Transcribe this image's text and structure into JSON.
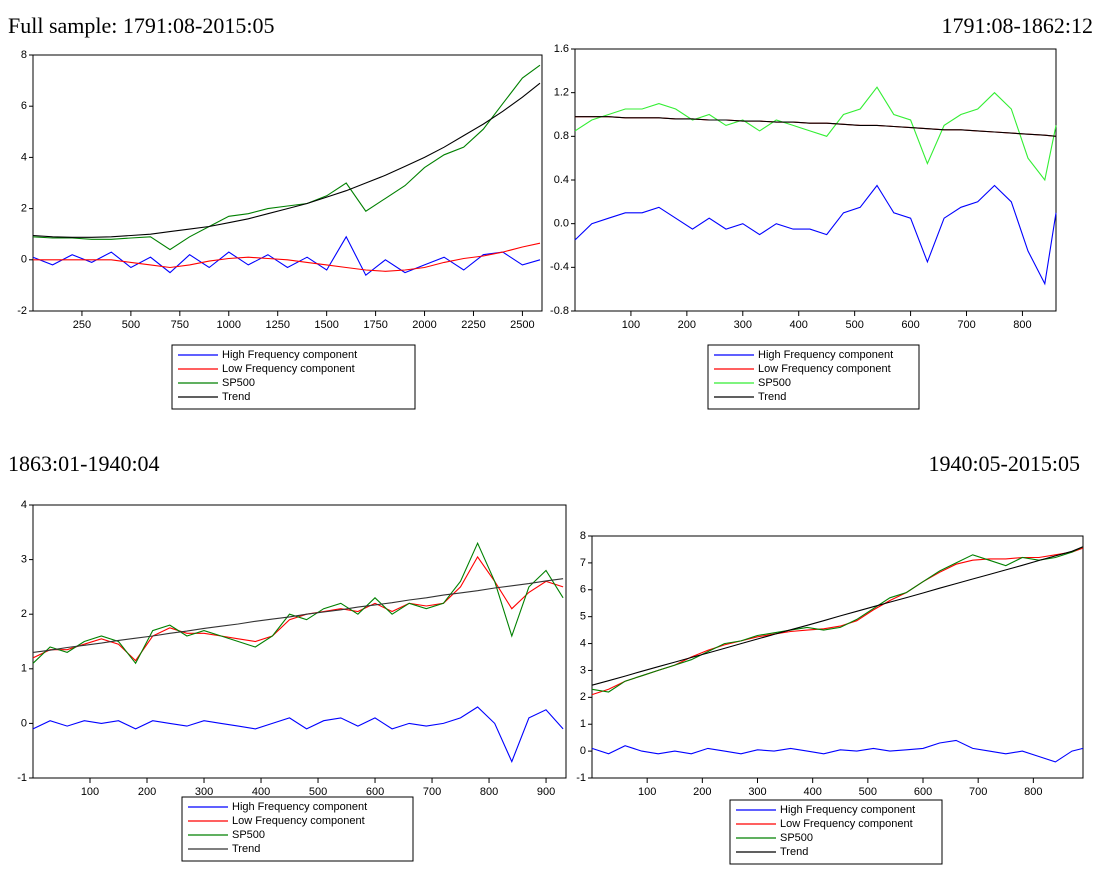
{
  "chart_data": [
    {
      "type": "line",
      "title": "Full sample: 1791:08-2015:05",
      "x": [
        0,
        100,
        200,
        300,
        400,
        500,
        600,
        700,
        800,
        900,
        1000,
        1100,
        1200,
        1300,
        1400,
        1500,
        1600,
        1700,
        1800,
        1900,
        2000,
        2100,
        2200,
        2300,
        2400,
        2500,
        2590
      ],
      "series": [
        {
          "name": "High Frequency component",
          "color": "#0000ff",
          "values": [
            0.1,
            -0.2,
            0.2,
            -0.1,
            0.3,
            -0.3,
            0.1,
            -0.5,
            0.2,
            -0.3,
            0.3,
            -0.2,
            0.2,
            -0.3,
            0.1,
            -0.4,
            0.9,
            -0.6,
            0.0,
            -0.5,
            -0.2,
            0.1,
            -0.4,
            0.2,
            0.3,
            -0.2,
            0.0
          ]
        },
        {
          "name": "Low Frequency component",
          "color": "#ff0000",
          "values": [
            0,
            0,
            0,
            0,
            0,
            -0.1,
            -0.2,
            -0.3,
            -0.2,
            -0.05,
            0.05,
            0.1,
            0.05,
            0,
            -0.1,
            -0.2,
            -0.3,
            -0.4,
            -0.45,
            -0.4,
            -0.3,
            -0.1,
            0.05,
            0.15,
            0.3,
            0.5,
            0.65
          ]
        },
        {
          "name": "SP500",
          "color": "#008000",
          "values": [
            0.9,
            0.85,
            0.85,
            0.8,
            0.8,
            0.85,
            0.9,
            0.4,
            0.9,
            1.3,
            1.7,
            1.8,
            2.0,
            2.1,
            2.2,
            2.5,
            3.0,
            1.9,
            2.4,
            2.9,
            3.6,
            4.1,
            4.4,
            5.1,
            6.1,
            7.1,
            7.6
          ]
        },
        {
          "name": "Trend",
          "color": "#000000",
          "values": [
            0.95,
            0.9,
            0.88,
            0.88,
            0.9,
            0.95,
            1.0,
            1.1,
            1.2,
            1.3,
            1.45,
            1.6,
            1.8,
            2.0,
            2.2,
            2.45,
            2.7,
            3.0,
            3.3,
            3.65,
            4.0,
            4.4,
            4.85,
            5.3,
            5.8,
            6.35,
            6.9
          ]
        }
      ],
      "xlim": [
        0,
        2600
      ],
      "ylim": [
        -2,
        8
      ],
      "xticks": [
        250,
        500,
        750,
        1000,
        1250,
        1500,
        1750,
        2000,
        2250,
        2500
      ],
      "yticks": [
        -2,
        0,
        2,
        4,
        6,
        8
      ]
    },
    {
      "type": "line",
      "title": "1791:08-1862:12",
      "x": [
        0,
        30,
        60,
        90,
        120,
        150,
        180,
        210,
        240,
        270,
        300,
        330,
        360,
        390,
        420,
        450,
        480,
        510,
        540,
        570,
        600,
        630,
        660,
        690,
        720,
        750,
        780,
        810,
        840,
        860
      ],
      "series": [
        {
          "name": "High Frequency component",
          "color": "#0000ff",
          "values": [
            -0.15,
            0.0,
            0.05,
            0.1,
            0.1,
            0.15,
            0.05,
            -0.05,
            0.05,
            -0.05,
            0.0,
            -0.1,
            0.0,
            -0.05,
            -0.05,
            -0.1,
            0.1,
            0.15,
            0.35,
            0.1,
            0.05,
            -0.35,
            0.05,
            0.15,
            0.2,
            0.35,
            0.2,
            -0.25,
            -0.55,
            0.1
          ]
        },
        {
          "name": "Low Frequency component",
          "color": "#ff0000",
          "values": [
            0.98,
            0.98,
            0.98,
            0.97,
            0.97,
            0.97,
            0.96,
            0.96,
            0.95,
            0.95,
            0.94,
            0.94,
            0.93,
            0.93,
            0.92,
            0.92,
            0.91,
            0.9,
            0.9,
            0.89,
            0.88,
            0.87,
            0.86,
            0.86,
            0.85,
            0.84,
            0.83,
            0.82,
            0.81,
            0.8
          ]
        },
        {
          "name": "SP500",
          "color": "#33ee33",
          "values": [
            0.85,
            0.95,
            1.0,
            1.05,
            1.05,
            1.1,
            1.05,
            0.95,
            1.0,
            0.9,
            0.95,
            0.85,
            0.95,
            0.9,
            0.85,
            0.8,
            1.0,
            1.05,
            1.25,
            1.0,
            0.95,
            0.55,
            0.9,
            1.0,
            1.05,
            1.2,
            1.05,
            0.6,
            0.4,
            0.9
          ]
        },
        {
          "name": "Trend",
          "color": "#000000",
          "values": [
            0.98,
            0.98,
            0.98,
            0.97,
            0.97,
            0.97,
            0.96,
            0.96,
            0.95,
            0.95,
            0.94,
            0.94,
            0.93,
            0.93,
            0.92,
            0.92,
            0.91,
            0.9,
            0.9,
            0.89,
            0.88,
            0.87,
            0.86,
            0.86,
            0.85,
            0.84,
            0.83,
            0.82,
            0.81,
            0.8
          ]
        }
      ],
      "xlim": [
        0,
        860
      ],
      "ylim": [
        -0.8,
        1.6
      ],
      "xticks": [
        100,
        200,
        300,
        400,
        500,
        600,
        700,
        800
      ],
      "yticks": [
        -0.8,
        -0.4,
        {
          "value": 0,
          "label": "0.0"
        },
        0.4,
        0.8,
        1.2,
        1.6
      ]
    },
    {
      "type": "line",
      "title": "1863:01-1940:04",
      "x": [
        0,
        30,
        60,
        90,
        120,
        150,
        180,
        210,
        240,
        270,
        300,
        330,
        360,
        390,
        420,
        450,
        480,
        510,
        540,
        570,
        600,
        630,
        660,
        690,
        720,
        750,
        780,
        810,
        840,
        870,
        900,
        930
      ],
      "series": [
        {
          "name": "High Frequency component",
          "color": "#0000ff",
          "values": [
            -0.1,
            0.05,
            -0.05,
            0.05,
            0.0,
            0.05,
            -0.1,
            0.05,
            0.0,
            -0.05,
            0.05,
            0.0,
            -0.05,
            -0.1,
            0.0,
            0.1,
            -0.1,
            0.05,
            0.1,
            -0.05,
            0.1,
            -0.1,
            0.0,
            -0.05,
            0.0,
            0.1,
            0.3,
            0.0,
            -0.7,
            0.1,
            0.25,
            -0.1
          ]
        },
        {
          "name": "Low Frequency component",
          "color": "#ff0000",
          "values": [
            1.2,
            1.35,
            1.35,
            1.45,
            1.55,
            1.45,
            1.15,
            1.6,
            1.75,
            1.65,
            1.65,
            1.6,
            1.55,
            1.5,
            1.6,
            1.9,
            2.0,
            2.05,
            2.1,
            2.05,
            2.2,
            2.05,
            2.2,
            2.15,
            2.2,
            2.5,
            3.05,
            2.6,
            2.1,
            2.4,
            2.6,
            2.5
          ]
        },
        {
          "name": "SP500",
          "color": "#008000",
          "values": [
            1.1,
            1.4,
            1.3,
            1.5,
            1.6,
            1.5,
            1.1,
            1.7,
            1.8,
            1.6,
            1.7,
            1.6,
            1.5,
            1.4,
            1.6,
            2.0,
            1.9,
            2.1,
            2.2,
            2.0,
            2.3,
            2.0,
            2.2,
            2.1,
            2.2,
            2.6,
            3.3,
            2.6,
            1.6,
            2.5,
            2.8,
            2.3
          ]
        },
        {
          "name": "Trend",
          "color": "#333333",
          "values": [
            1.3,
            1.34,
            1.39,
            1.43,
            1.47,
            1.52,
            1.56,
            1.6,
            1.65,
            1.69,
            1.74,
            1.78,
            1.82,
            1.87,
            1.91,
            1.95,
            2.0,
            2.04,
            2.08,
            2.13,
            2.17,
            2.21,
            2.26,
            2.3,
            2.35,
            2.39,
            2.43,
            2.48,
            2.52,
            2.56,
            2.61,
            2.65
          ]
        }
      ],
      "xlim": [
        0,
        935
      ],
      "ylim": [
        -1,
        4
      ],
      "xticks": [
        100,
        200,
        300,
        400,
        500,
        600,
        700,
        800,
        900
      ],
      "yticks": [
        -1,
        0,
        1,
        2,
        3,
        4
      ]
    },
    {
      "type": "line",
      "title": "1940:05-2015:05",
      "x": [
        0,
        30,
        60,
        90,
        120,
        150,
        180,
        210,
        240,
        270,
        300,
        330,
        360,
        390,
        420,
        450,
        480,
        510,
        540,
        570,
        600,
        630,
        660,
        690,
        720,
        750,
        780,
        810,
        840,
        870,
        890
      ],
      "series": [
        {
          "name": "High Frequency component",
          "color": "#0000ff",
          "values": [
            0.1,
            -0.1,
            0.2,
            0.0,
            -0.1,
            0.0,
            -0.1,
            0.1,
            0.0,
            -0.1,
            0.05,
            0.0,
            0.1,
            0.0,
            -0.1,
            0.05,
            0.0,
            0.1,
            0.0,
            0.05,
            0.1,
            0.3,
            0.4,
            0.1,
            0.0,
            -0.1,
            0.0,
            -0.2,
            -0.4,
            0.0,
            0.1
          ]
        },
        {
          "name": "Low Frequency component",
          "color": "#ff0000",
          "values": [
            2.1,
            2.3,
            2.6,
            2.8,
            3.0,
            3.2,
            3.5,
            3.75,
            3.95,
            4.1,
            4.25,
            4.35,
            4.45,
            4.5,
            4.55,
            4.65,
            4.85,
            5.25,
            5.6,
            5.9,
            6.3,
            6.65,
            6.95,
            7.1,
            7.15,
            7.15,
            7.2,
            7.2,
            7.3,
            7.4,
            7.55
          ]
        },
        {
          "name": "SP500",
          "color": "#008000",
          "values": [
            2.3,
            2.2,
            2.6,
            2.8,
            3.0,
            3.2,
            3.4,
            3.7,
            4.0,
            4.1,
            4.3,
            4.4,
            4.5,
            4.6,
            4.5,
            4.6,
            4.9,
            5.3,
            5.7,
            5.9,
            6.3,
            6.7,
            7.0,
            7.3,
            7.1,
            6.9,
            7.2,
            7.1,
            7.2,
            7.4,
            7.6
          ]
        },
        {
          "name": "Trend",
          "color": "#000000",
          "values": [
            2.45,
            2.62,
            2.79,
            2.97,
            3.14,
            3.31,
            3.48,
            3.65,
            3.82,
            4.0,
            4.17,
            4.34,
            4.51,
            4.68,
            4.85,
            5.03,
            5.2,
            5.37,
            5.54,
            5.71,
            5.88,
            6.06,
            6.23,
            6.4,
            6.57,
            6.74,
            6.91,
            7.09,
            7.26,
            7.43,
            7.6
          ]
        }
      ],
      "xlim": [
        0,
        890
      ],
      "ylim": [
        -1,
        8
      ],
      "xticks": [
        100,
        200,
        300,
        400,
        500,
        600,
        700,
        800
      ],
      "yticks": [
        -1,
        0,
        1,
        2,
        3,
        4,
        5,
        6,
        7,
        8
      ]
    }
  ]
}
